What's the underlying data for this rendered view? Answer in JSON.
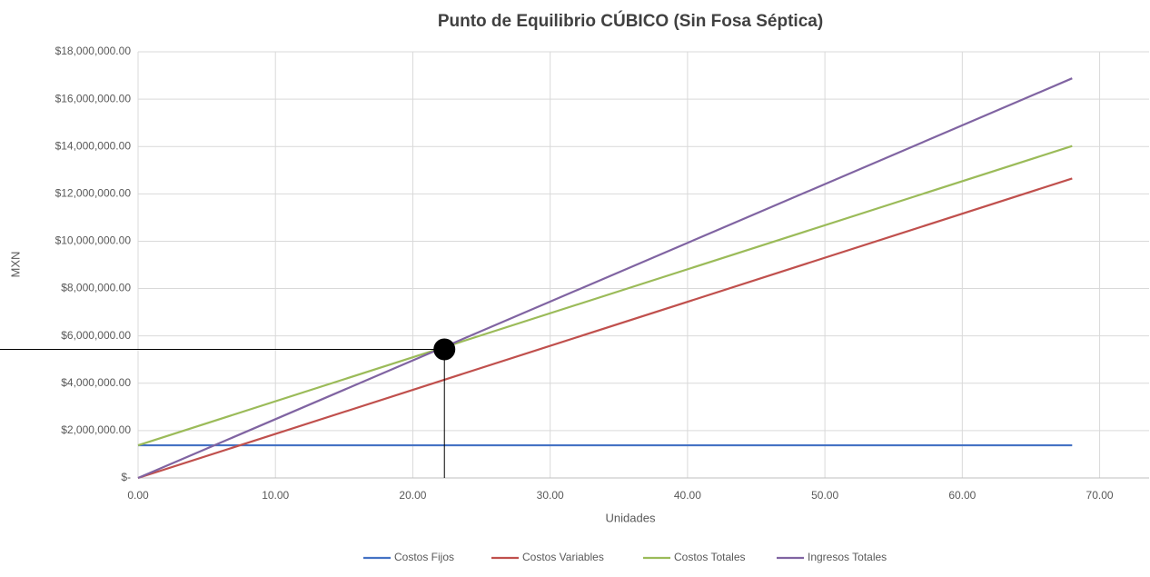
{
  "chart_data": {
    "type": "line",
    "title": "Punto de Equilibrio CÚBICO (Sin Fosa Séptica)",
    "x_label": "Unidades",
    "y_label": "MXN",
    "x": [
      0,
      68
    ],
    "series": [
      {
        "name": "Costos Fijos",
        "color": "#4472c4",
        "values": [
          1380000,
          1380000
        ]
      },
      {
        "name": "Costos Variables",
        "color": "#c0504d",
        "values": [
          0,
          12650000
        ]
      },
      {
        "name": "Costos Totales",
        "color": "#9bbb59",
        "values": [
          1380000,
          14020000
        ]
      },
      {
        "name": "Ingresos Totales",
        "color": "#8064a2",
        "values": [
          0,
          16880000
        ]
      }
    ],
    "break_even": {
      "x": 22.3,
      "y": 5430000
    },
    "xlim": [
      0,
      73.6
    ],
    "ylim": [
      0,
      18000000
    ],
    "xticks": [
      {
        "value": 0,
        "label": "0.00"
      },
      {
        "value": 10,
        "label": "10.00"
      },
      {
        "value": 20,
        "label": "20.00"
      },
      {
        "value": 30,
        "label": "30.00"
      },
      {
        "value": 40,
        "label": "40.00"
      },
      {
        "value": 50,
        "label": "50.00"
      },
      {
        "value": 60,
        "label": "60.00"
      },
      {
        "value": 70,
        "label": "70.00"
      }
    ],
    "yticks": [
      {
        "value": 0,
        "label": "$-"
      },
      {
        "value": 2000000,
        "label": "$2,000,000.00"
      },
      {
        "value": 4000000,
        "label": "$4,000,000.00"
      },
      {
        "value": 6000000,
        "label": "$6,000,000.00"
      },
      {
        "value": 8000000,
        "label": "$8,000,000.00"
      },
      {
        "value": 10000000,
        "label": "$10,000,000.00"
      },
      {
        "value": 12000000,
        "label": "$12,000,000.00"
      },
      {
        "value": 14000000,
        "label": "$14,000,000.00"
      },
      {
        "value": 16000000,
        "label": "$16,000,000.00"
      },
      {
        "value": 18000000,
        "label": "$18,000,000.00"
      }
    ],
    "grid": true,
    "legend": "bottom"
  }
}
